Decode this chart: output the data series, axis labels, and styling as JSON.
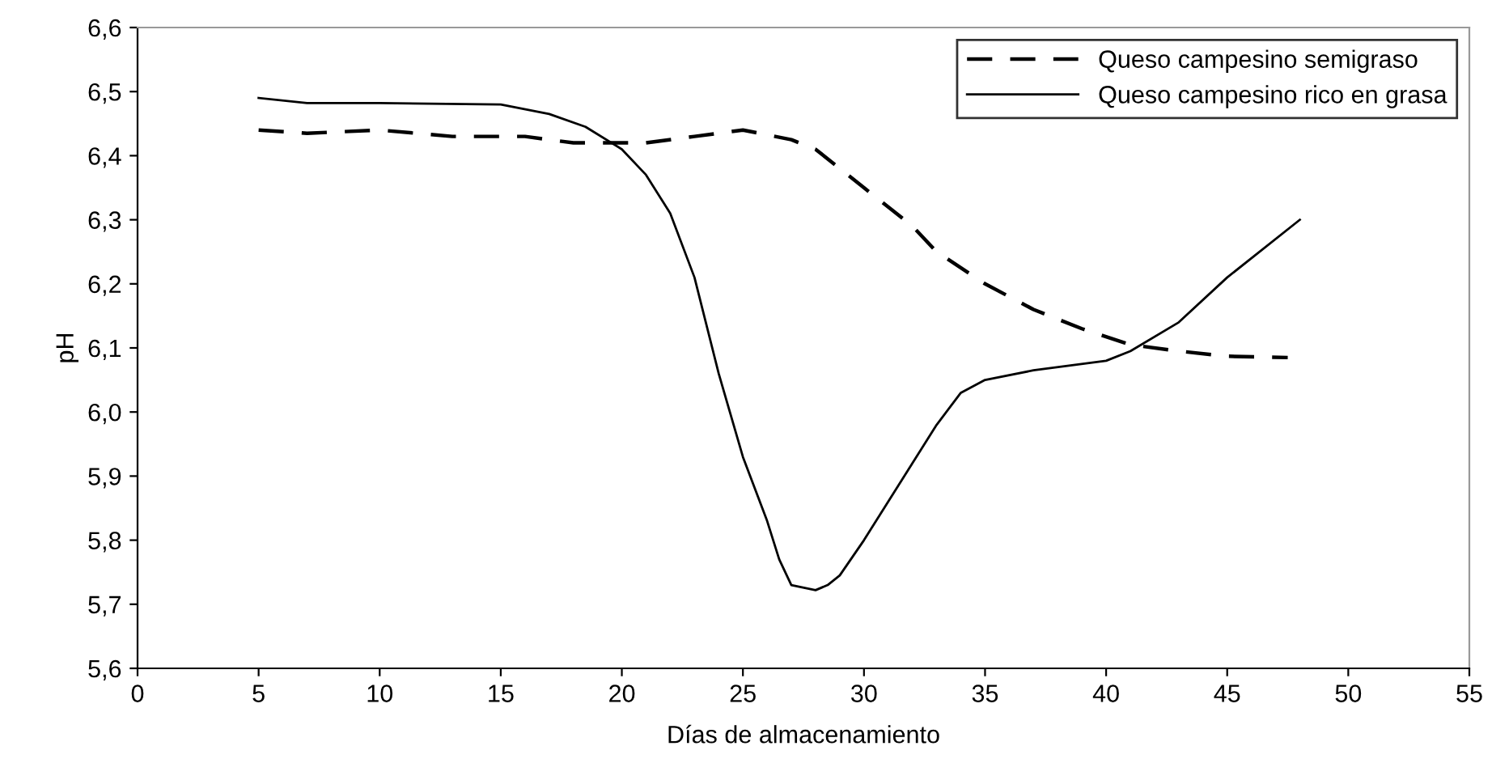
{
  "chart_data": {
    "type": "line",
    "xlabel": "Días de almacenamiento",
    "ylabel": "pH",
    "xlim": [
      0,
      55
    ],
    "xticks": [
      0,
      5,
      10,
      15,
      20,
      25,
      30,
      35,
      40,
      45,
      50,
      55
    ],
    "ylim": [
      5.6,
      6.6
    ],
    "yticks": [
      {
        "value": 5.6,
        "label": "5,6"
      },
      {
        "value": 5.7,
        "label": "5,7"
      },
      {
        "value": 5.8,
        "label": "5,8"
      },
      {
        "value": 5.9,
        "label": "5,9"
      },
      {
        "value": 6.0,
        "label": "6,0"
      },
      {
        "value": 6.1,
        "label": "6,1"
      },
      {
        "value": 6.2,
        "label": "6,2"
      },
      {
        "value": 6.3,
        "label": "6,3"
      },
      {
        "value": 6.4,
        "label": "6,4"
      },
      {
        "value": 6.5,
        "label": "6,5"
      },
      {
        "value": 6.6,
        "label": "6,6"
      }
    ],
    "grid": false,
    "legend": "top right",
    "marker": "none",
    "series": [
      {
        "name": "Queso campesino semigraso",
        "color": "#000000",
        "line_style": "dashed",
        "x": [
          5,
          7,
          10,
          13,
          16,
          18,
          21,
          23,
          25,
          27,
          28,
          30,
          32,
          33,
          35,
          37,
          39,
          41,
          43,
          45,
          47.5
        ],
        "values": [
          6.44,
          6.435,
          6.44,
          6.43,
          6.43,
          6.42,
          6.42,
          6.43,
          6.44,
          6.425,
          6.41,
          6.35,
          6.29,
          6.25,
          6.2,
          6.16,
          6.13,
          6.105,
          6.095,
          6.087,
          6.085
        ]
      },
      {
        "name": "Queso campesino rico en grasa",
        "color": "#000000",
        "line_style": "solid",
        "x": [
          5,
          7,
          10,
          15,
          17,
          18.5,
          20,
          21,
          22,
          23,
          24,
          25,
          26,
          26.5,
          27,
          28,
          28.5,
          29,
          30,
          31,
          32,
          33,
          34,
          35,
          37,
          40,
          41,
          43,
          45,
          48
        ],
        "values": [
          6.49,
          6.482,
          6.482,
          6.48,
          6.465,
          6.445,
          6.41,
          6.37,
          6.31,
          6.21,
          6.06,
          5.93,
          5.83,
          5.77,
          5.73,
          5.722,
          5.73,
          5.745,
          5.8,
          5.86,
          5.92,
          5.98,
          6.03,
          6.05,
          6.065,
          6.08,
          6.095,
          6.14,
          6.21,
          6.3
        ]
      }
    ]
  }
}
